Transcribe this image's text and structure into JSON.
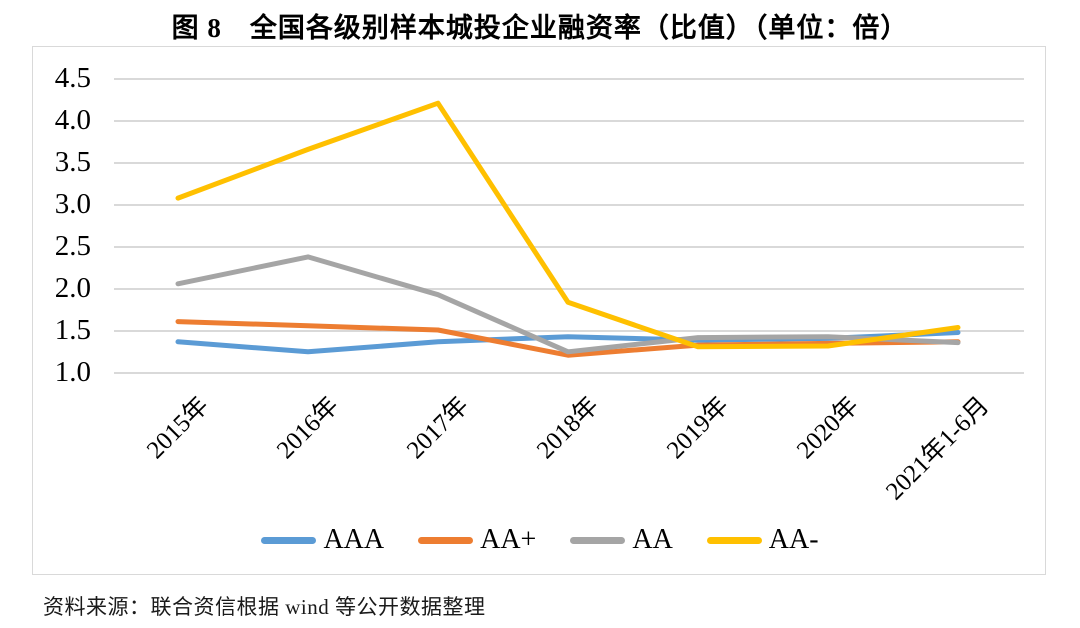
{
  "page": {
    "title": "图 8　全国各级别样本城投企业融资率（比值）（单位：倍）"
  },
  "source_note": "资料来源：联合资信根据 wind 等公开数据整理",
  "chart_data": {
    "type": "line",
    "title": "图 8　全国各级别样本城投企业融资率（比值）（单位：倍）",
    "unit": "倍",
    "categories": [
      "2015年",
      "2016年",
      "2017年",
      "2018年",
      "2019年",
      "2020年",
      "2021年1-6月"
    ],
    "series": [
      {
        "name": "AAA",
        "color": "#5B9BD5",
        "values": [
          1.36,
          1.24,
          1.36,
          1.42,
          1.38,
          1.4,
          1.47
        ]
      },
      {
        "name": "AA+",
        "color": "#ED7D31",
        "values": [
          1.6,
          1.55,
          1.5,
          1.2,
          1.32,
          1.34,
          1.36
        ]
      },
      {
        "name": "AA",
        "color": "#A5A5A5",
        "values": [
          2.05,
          2.37,
          1.92,
          1.24,
          1.41,
          1.42,
          1.35
        ]
      },
      {
        "name": "AA-",
        "color": "#FFC000",
        "values": [
          3.07,
          3.65,
          4.2,
          1.83,
          1.3,
          1.31,
          1.53
        ]
      }
    ],
    "ylim": [
      1.0,
      4.5
    ],
    "ytick_step": 0.5,
    "yticks": [
      "4.5",
      "4.0",
      "3.5",
      "3.0",
      "2.5",
      "2.0",
      "1.5",
      "1.0"
    ],
    "xlabel": "",
    "ylabel": "",
    "grid": "horizontal",
    "gridline_color": "#d9d9d9",
    "legend_position": "bottom"
  }
}
